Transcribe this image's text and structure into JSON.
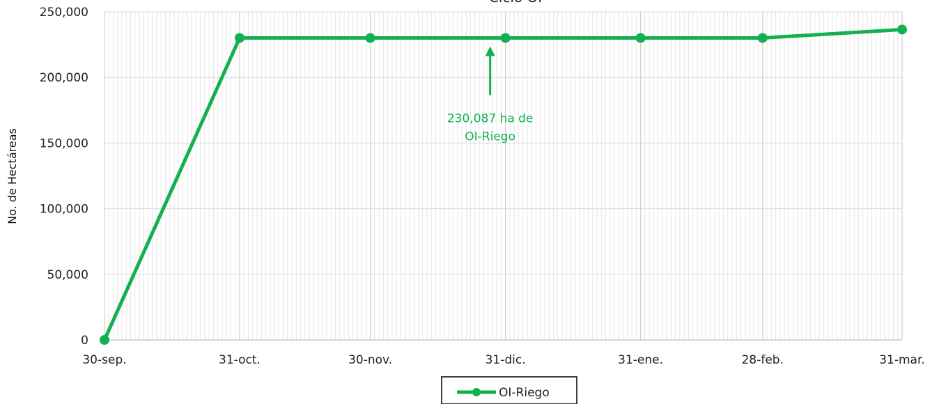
{
  "chart_data": {
    "type": "line",
    "title": "Ciclo OI",
    "xlabel": "",
    "ylabel": "No. de Hectáreas",
    "categories": [
      "30-sep.",
      "31-oct.",
      "30-nov.",
      "31-dic.",
      "31-ene.",
      "28-feb.",
      "31-mar."
    ],
    "x": [
      "2023-09-30",
      "2023-10-31",
      "2023-11-30",
      "2023-12-31",
      "2024-01-31",
      "2024-02-28",
      "2024-03-31"
    ],
    "series": [
      {
        "name": "OI-Riego",
        "color": "#12b050",
        "values": [
          0,
          230087,
          230087,
          230087,
          230087,
          230087,
          236500
        ]
      }
    ],
    "ylim": [
      0,
      250000
    ],
    "yticks": [
      "0",
      "50,000",
      "100,000",
      "150,000",
      "200,000",
      "250,000"
    ],
    "grid": true,
    "legend": "bottom-center",
    "annotations": [
      {
        "text_lines": [
          "230,087 ha de",
          "OI-Riego"
        ],
        "x": "2023-12-31",
        "y": 230087,
        "color": "#12b050",
        "icon": "arrow-up-icon"
      }
    ]
  }
}
